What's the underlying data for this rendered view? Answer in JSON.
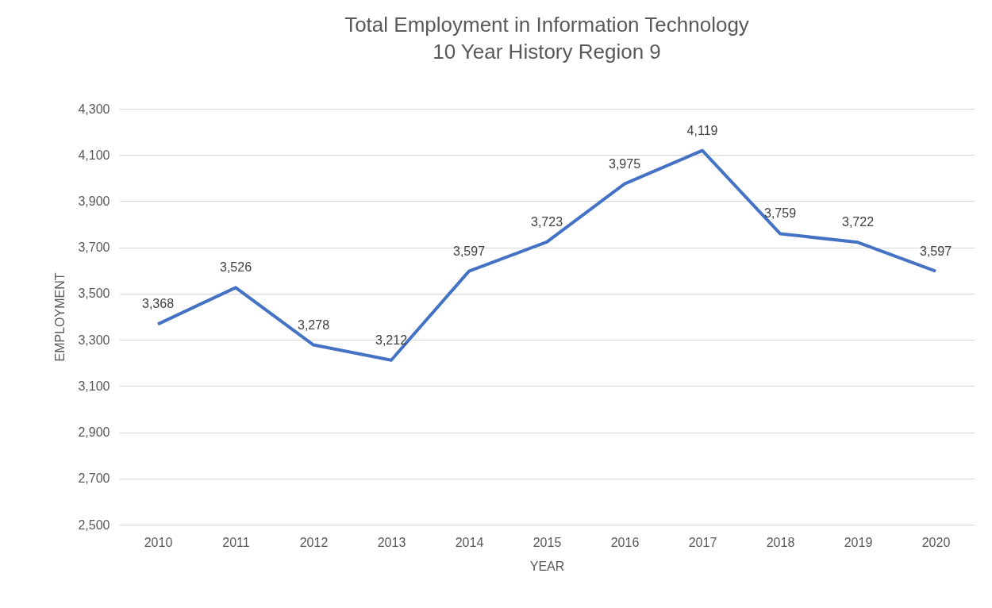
{
  "chart_data": {
    "type": "line",
    "title": "Total Employment in Information Technology",
    "subtitle": "10 Year History Region 9",
    "xlabel": "YEAR",
    "ylabel": "EMPLOYMENT",
    "categories": [
      "2010",
      "2011",
      "2012",
      "2013",
      "2014",
      "2015",
      "2016",
      "2017",
      "2018",
      "2019",
      "2020"
    ],
    "series": [
      {
        "color": "#4472c4",
        "values": [
          3368,
          3526,
          3278,
          3212,
          3597,
          3723,
          3975,
          4119,
          3759,
          3722,
          3597
        ],
        "value_labels": [
          "3,368",
          "3,526",
          "3,278",
          "3,212",
          "3,597",
          "3,723",
          "3,975",
          "4,119",
          "3,759",
          "3,722",
          "3,597"
        ]
      }
    ],
    "ylim": [
      2500,
      4300
    ],
    "yticks": [
      {
        "value": 2500,
        "label": "2,500"
      },
      {
        "value": 2700,
        "label": "2,700"
      },
      {
        "value": 2900,
        "label": "2,900"
      },
      {
        "value": 3100,
        "label": "3,100"
      },
      {
        "value": 3300,
        "label": "3,300"
      },
      {
        "value": 3500,
        "label": "3,500"
      },
      {
        "value": 3700,
        "label": "3,700"
      },
      {
        "value": 3900,
        "label": "3,900"
      },
      {
        "value": 4100,
        "label": "4,100"
      },
      {
        "value": 4300,
        "label": "4,300"
      }
    ],
    "grid": "y",
    "marker": "none",
    "line_style": "solid"
  }
}
